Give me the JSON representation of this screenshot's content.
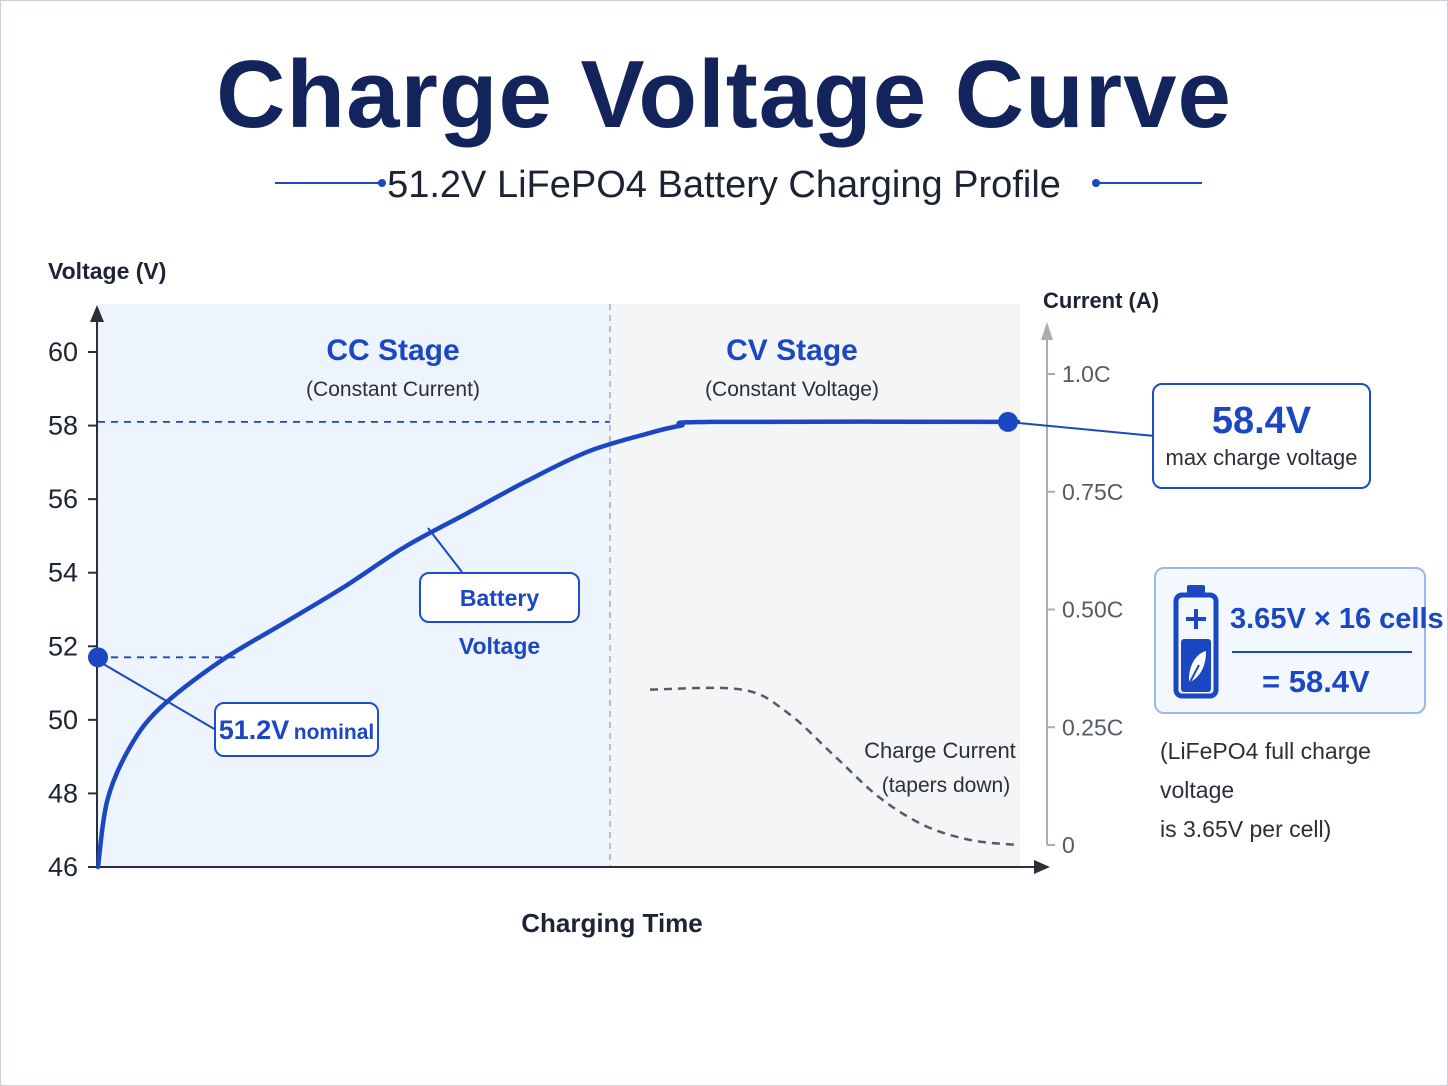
{
  "header": {
    "title": "Charge Voltage Curve",
    "subtitle": "51.2V LiFePO4 Battery Charging Profile"
  },
  "chart_data": {
    "type": "line",
    "xlabel": "Charging Time",
    "ylabel": "Voltage (V)",
    "y2label": "Current (A)",
    "ylim": [
      46,
      60
    ],
    "yticks": [
      "60",
      "58",
      "56",
      "54",
      "52",
      "50",
      "48",
      "46"
    ],
    "y2ticks": [
      "1.0C",
      "0.75C",
      "0.50C",
      "0.25C",
      "0"
    ],
    "regions": [
      {
        "title": "CC Stage",
        "subtitle": "(Constant Current)"
      },
      {
        "title": "CV Stage",
        "subtitle": "(Constant Voltage)"
      }
    ],
    "series": [
      {
        "name": "Battery Voltage",
        "points": [
          [
            0,
            46
          ],
          [
            0.3,
            47.8
          ],
          [
            1,
            49.2
          ],
          [
            2,
            50.3
          ],
          [
            4,
            51.6
          ],
          [
            6,
            52.6
          ],
          [
            8,
            53.6
          ],
          [
            10,
            54.7
          ],
          [
            12,
            55.6
          ],
          [
            14,
            56.5
          ],
          [
            16,
            57.3
          ],
          [
            18,
            57.8
          ],
          [
            19,
            58.0
          ],
          [
            20,
            58.1
          ],
          [
            30,
            58.1
          ]
        ]
      },
      {
        "name": "Charge Current",
        "note": "(tapers down)",
        "points": [
          [
            18,
            0.33
          ],
          [
            21,
            0.33
          ],
          [
            22.5,
            0.28
          ],
          [
            24,
            0.19
          ],
          [
            25.5,
            0.1
          ],
          [
            27,
            0.04
          ],
          [
            28.5,
            0.01
          ],
          [
            30,
            0.0
          ]
        ]
      }
    ],
    "annotations": {
      "nominal": {
        "value_label": "51.2V",
        "suffix": "nominal",
        "y": 51.7
      },
      "max": {
        "value_label": "58.4V",
        "caption": "max charge voltage",
        "y": 58.1
      }
    }
  },
  "cell_info": {
    "formula_line1": "3.65V × 16 cells",
    "formula_line2": "= 58.4V",
    "note_line1": "(LiFePO4 full charge voltage",
    "note_line2": "is 3.65V per cell)"
  },
  "colors": {
    "accent": "#1b48c2",
    "title": "#13245c",
    "cc_bg": "#eef4fd",
    "cv_bg": "#f4f5f7"
  }
}
